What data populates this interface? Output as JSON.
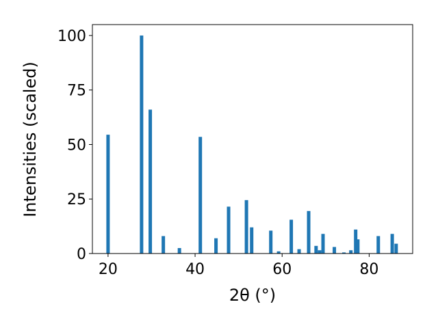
{
  "chart_data": {
    "type": "bar",
    "xlabel": "2θ (°)",
    "ylabel": "Intensities (scaled)",
    "color": "#1f77b4",
    "x": [
      20.0,
      27.7,
      29.7,
      32.7,
      36.4,
      41.2,
      44.8,
      47.7,
      51.8,
      53.0,
      57.4,
      59.2,
      62.1,
      63.9,
      66.1,
      67.8,
      68.6,
      69.4,
      72.0,
      74.2,
      75.8,
      76.9,
      77.4,
      82.1,
      85.3,
      86.2
    ],
    "values": [
      54.5,
      100,
      66,
      8,
      2.5,
      53.5,
      7,
      21.5,
      24.5,
      12,
      10.5,
      1,
      15.5,
      2,
      19.5,
      3.5,
      1.5,
      9,
      3,
      0.5,
      1.5,
      11,
      6.5,
      8,
      9,
      4.5
    ],
    "xlim": [
      16.4,
      90
    ],
    "ylim": [
      0,
      105
    ],
    "xticks": [
      20,
      40,
      60,
      80
    ],
    "yticks": [
      0,
      25,
      50,
      75,
      100
    ],
    "grid": false
  }
}
